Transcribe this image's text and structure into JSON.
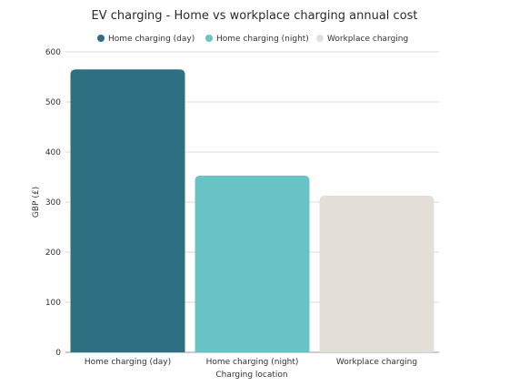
{
  "chart_data": {
    "type": "bar",
    "title": "EV charging - Home vs workplace charging annual cost",
    "xlabel": "Charging location",
    "ylabel": "GBP (£)",
    "categories": [
      "Home charging (day)",
      "Home charging (night)",
      "Workplace charging"
    ],
    "values": [
      565,
      353,
      313
    ],
    "colors": [
      "#2e6f82",
      "#69c3c5",
      "#e3dfd8"
    ],
    "legend": {
      "placement": "top-center",
      "entries": [
        "Home charging (day)",
        "Home charging (night)",
        "Workplace charging"
      ]
    },
    "ylim": [
      0,
      600
    ],
    "yticks": [
      0,
      100,
      200,
      300,
      400,
      500,
      600
    ],
    "grid": true
  }
}
